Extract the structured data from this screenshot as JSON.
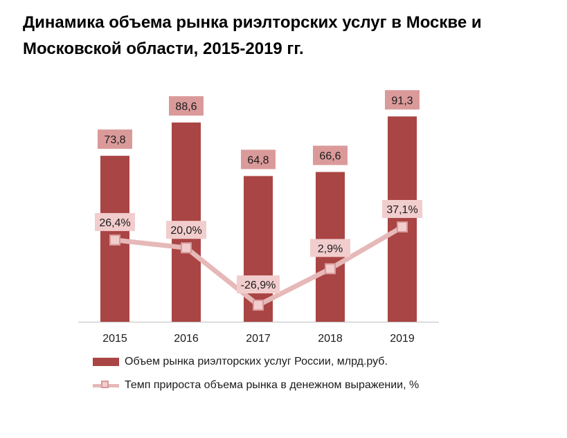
{
  "title": "Динамика объема рынка риэлторских услуг в Москве и Московской области, 2015-2019 гг.",
  "colors": {
    "bar": "#a94544",
    "bar_label_bg": "#db9a9a",
    "line": "#e6b8b8",
    "marker_fill": "#f2cdcd",
    "marker_stroke": "#d89a9a",
    "line_label_bg": "#f2cdcd"
  },
  "chart_data": {
    "type": "bar",
    "categories": [
      "2015",
      "2016",
      "2017",
      "2018",
      "2019"
    ],
    "series": [
      {
        "name": "Объем рынка риэлторских услуг России, млрд.руб.",
        "type": "bar",
        "values": [
          73.8,
          88.6,
          64.8,
          66.6,
          91.3
        ],
        "labels": [
          "73,8",
          "88,6",
          "64,8",
          "66,6",
          "91,3"
        ]
      },
      {
        "name": "Темп прироста объема рынка в денежном выражении, %",
        "type": "line",
        "values": [
          26.4,
          20.0,
          -26.9,
          2.9,
          37.1
        ],
        "labels": [
          "26,4%",
          "20,0%",
          "-26,9%",
          "2,9%",
          "37,1%"
        ]
      }
    ],
    "ylim": [
      0,
      100
    ],
    "y2lim": [
      -35,
      70
    ],
    "grid": false,
    "legend_position": "bottom"
  }
}
